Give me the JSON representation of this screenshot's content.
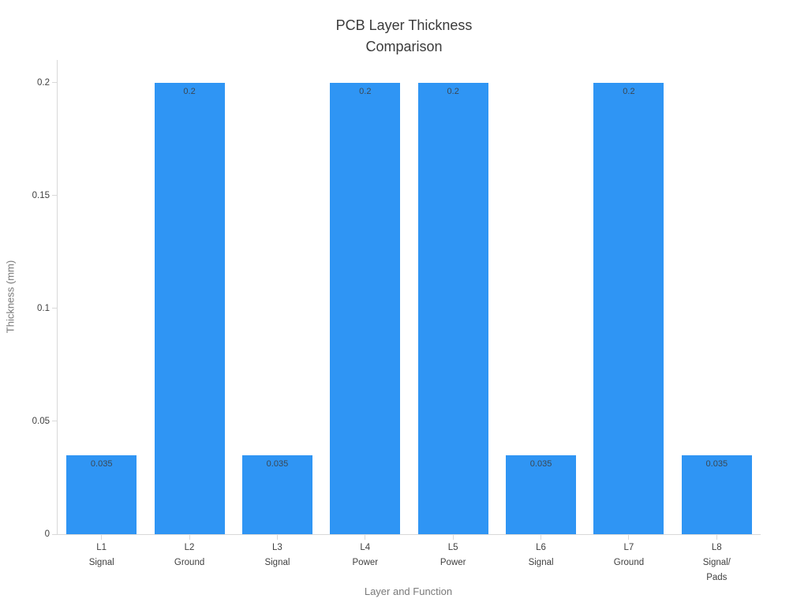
{
  "chart_data": {
    "type": "bar",
    "title": "PCB Layer Thickness Comparison",
    "title_lines": [
      "PCB Layer Thickness",
      "Comparison"
    ],
    "xlabel": "Layer and Function",
    "ylabel": "Thickness (mm)",
    "categories": [
      [
        "L1",
        "Signal"
      ],
      [
        "L2",
        "Ground"
      ],
      [
        "L3",
        "Signal"
      ],
      [
        "L4",
        "Power"
      ],
      [
        "L5",
        "Power"
      ],
      [
        "L6",
        "Signal"
      ],
      [
        "L7",
        "Ground"
      ],
      [
        "L8",
        "Signal/",
        "Pads"
      ]
    ],
    "values": [
      0.035,
      0.2,
      0.035,
      0.2,
      0.2,
      0.035,
      0.2,
      0.035
    ],
    "value_labels": [
      "0.035",
      "0.2",
      "0.035",
      "0.2",
      "0.2",
      "0.035",
      "0.2",
      "0.035"
    ],
    "yticks": [
      0,
      0.05,
      0.1,
      0.15,
      0.2
    ],
    "ytick_labels": [
      "0",
      "0.05",
      "0.1",
      "0.15",
      "0.2"
    ],
    "ylim": [
      0,
      0.21
    ],
    "grid": false,
    "legend_position": "none",
    "colors": {
      "bar": "#2f95f4",
      "value_label": "#3a4754",
      "tick_label": "#3f3f3f",
      "axis_title": "#7a7a7a",
      "axis_line": "#d9d9d9",
      "title": "#3b3b3b",
      "background": "#ffffff"
    }
  }
}
